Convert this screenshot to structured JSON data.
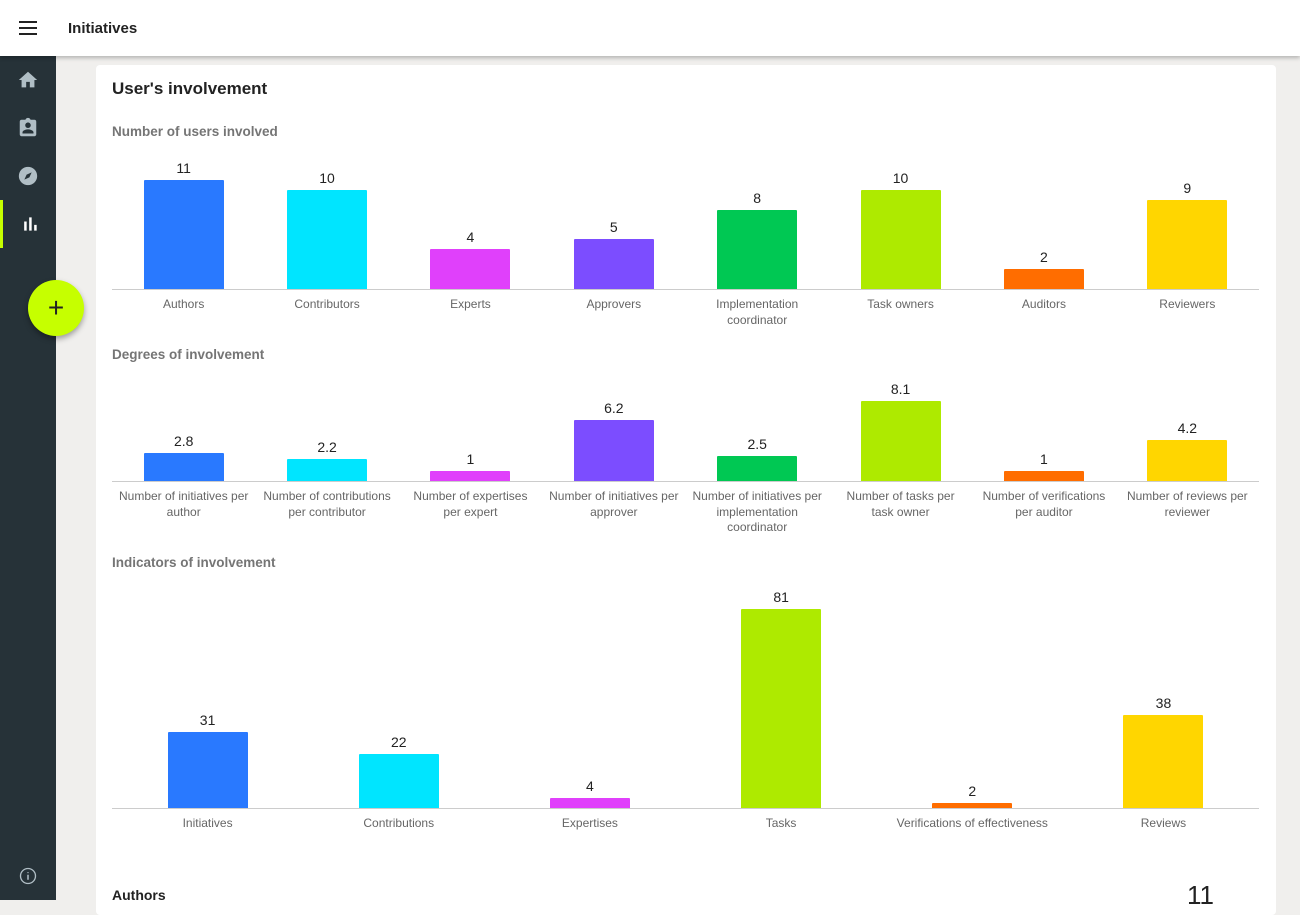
{
  "app": {
    "title": "Initiatives"
  },
  "card": {
    "title": "User's involvement",
    "footer_label": "Authors",
    "footer_value": "11"
  },
  "fab": {
    "label": "+"
  },
  "chart_data": [
    {
      "type": "bar",
      "title": "Number of users involved",
      "categories": [
        "Authors",
        "Contributors",
        "Experts",
        "Approvers",
        "Implementation coordinator",
        "Task owners",
        "Auditors",
        "Reviewers"
      ],
      "values": [
        11,
        10,
        4,
        5,
        8,
        10,
        2,
        9
      ],
      "colors": [
        "#2979ff",
        "#00e5ff",
        "#e040fb",
        "#7c4dff",
        "#00c853",
        "#aeea00",
        "#ff6d00",
        "#ffd600"
      ]
    },
    {
      "type": "bar",
      "title": "Degrees of involvement",
      "categories": [
        "Number of initiatives per author",
        "Number of contributions per contributor",
        "Number of expertises per expert",
        "Number of initiatives per approver",
        "Number of initiatives per implementation coordinator",
        "Number of tasks per task owner",
        "Number of verifications per auditor",
        "Number of reviews per reviewer"
      ],
      "values": [
        2.8,
        2.2,
        1,
        6.2,
        2.5,
        8.1,
        1,
        4.2
      ],
      "colors": [
        "#2979ff",
        "#00e5ff",
        "#e040fb",
        "#7c4dff",
        "#00c853",
        "#aeea00",
        "#ff6d00",
        "#ffd600"
      ]
    },
    {
      "type": "bar",
      "title": "Indicators of involvement",
      "categories": [
        "Initiatives",
        "Contributions",
        "Expertises",
        "Tasks",
        "Verifications of effectiveness",
        "Reviews"
      ],
      "values": [
        31,
        22,
        4,
        81,
        2,
        38
      ],
      "colors": [
        "#2979ff",
        "#00e5ff",
        "#e040fb",
        "#aeea00",
        "#ff6d00",
        "#ffd600"
      ]
    }
  ]
}
